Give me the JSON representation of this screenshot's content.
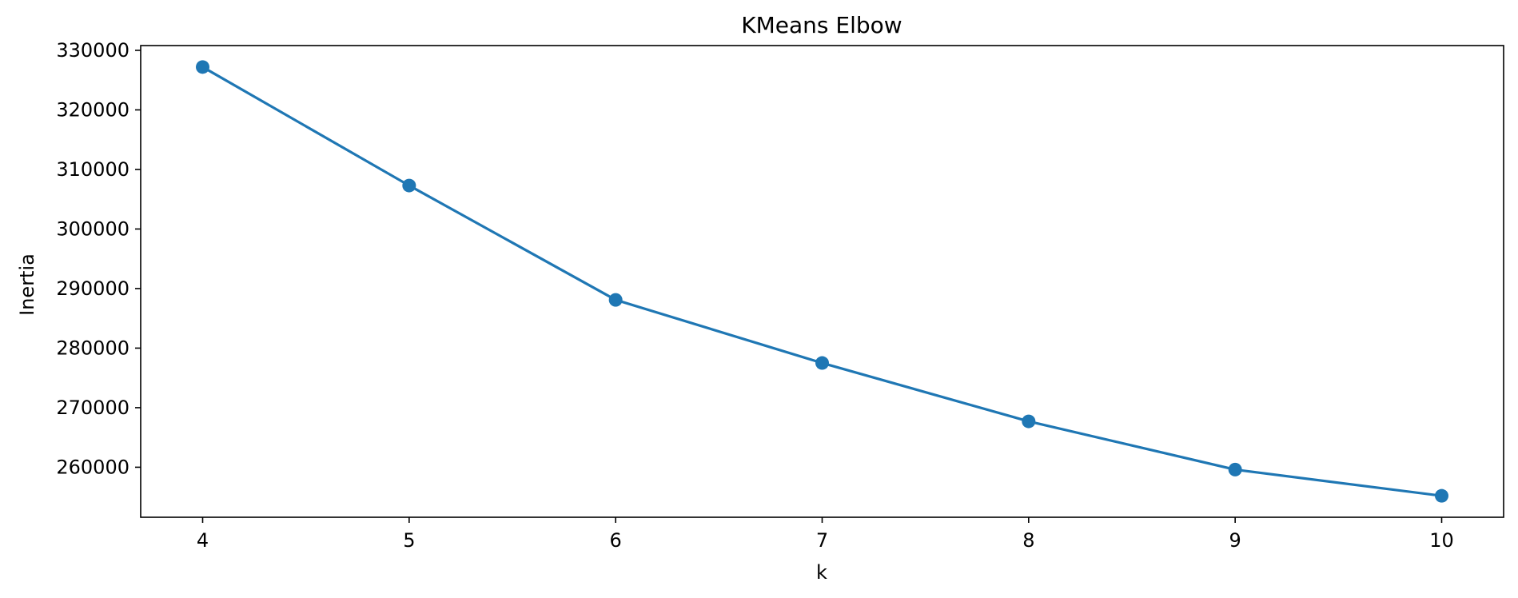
{
  "chart_data": {
    "type": "line",
    "title": "KMeans Elbow",
    "xlabel": "k",
    "ylabel": "Inertia",
    "x": [
      4,
      5,
      6,
      7,
      8,
      9,
      10
    ],
    "series": [
      {
        "values": [
          327200,
          307300,
          288100,
          277500,
          267700,
          259600,
          255200
        ]
      }
    ],
    "x_ticks": [
      "4",
      "5",
      "6",
      "7",
      "8",
      "9",
      "10"
    ],
    "y_ticks": [
      260000,
      270000,
      280000,
      290000,
      300000,
      310000,
      320000,
      330000
    ],
    "y_tick_labels": [
      "260000",
      "270000",
      "280000",
      "290000",
      "300000",
      "310000",
      "320000",
      "330000"
    ],
    "xlim": [
      3.7,
      10.3
    ],
    "ylim": [
      251600,
      330800
    ],
    "markers": true,
    "grid": false,
    "colors": {
      "line": "#1f77b4",
      "axes": "#000000"
    }
  }
}
